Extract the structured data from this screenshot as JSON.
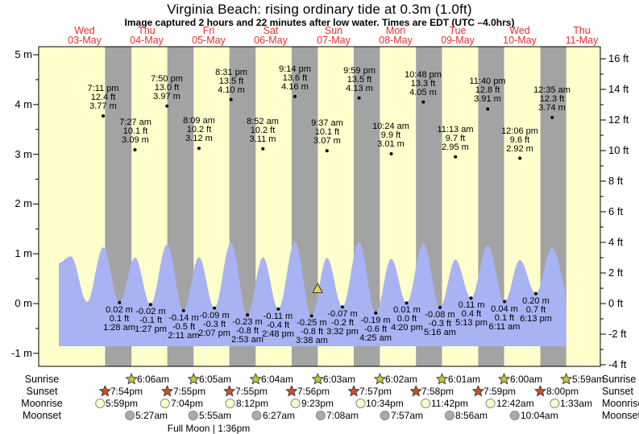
{
  "header": {
    "title": "Virginia Beach: rising  ordinary tide at 0.3m (1.0ft)",
    "subtitle": "Image captured 2 hours and 22 minutes after low water. Times are EDT (UTC –4.0hrs)"
  },
  "chart_data": {
    "type": "area",
    "title": "Virginia Beach: rising  ordinary tide at 0.3m (1.0ft)",
    "xlabel": "date",
    "ylabel_left": "m",
    "ylabel_right": "ft",
    "ylim_m": [
      -1.3,
      5.2
    ],
    "grid": false,
    "axes": {
      "left_ticks": [
        "5 m",
        "4 m",
        "3 m",
        "2 m",
        "1 m",
        "0 m",
        "-1 m"
      ],
      "right_ticks": [
        "16 ft",
        "14 ft",
        "12 ft",
        "10 ft",
        "8 ft",
        "6 ft",
        "4 ft",
        "2 ft",
        "0 ft",
        "-2 ft",
        "-4 ft"
      ]
    },
    "days": [
      {
        "name": "Wed",
        "date": "03-May"
      },
      {
        "name": "Thu",
        "date": "04-May"
      },
      {
        "name": "Fri",
        "date": "05-May"
      },
      {
        "name": "Sat",
        "date": "06-May"
      },
      {
        "name": "Sun",
        "date": "07-May"
      },
      {
        "name": "Mon",
        "date": "08-May"
      },
      {
        "name": "Tue",
        "date": "09-May"
      },
      {
        "name": "Wed",
        "date": "10-May"
      },
      {
        "name": "Thu",
        "date": "11-May"
      }
    ],
    "tides": [
      {
        "day": 0,
        "type": "high",
        "time": "7:11 pm",
        "ft": "12.4 ft",
        "m": "3.77 m"
      },
      {
        "day": 1,
        "type": "low",
        "time": "1:28 am",
        "ft": "0.1 ft",
        "m": "0.02 m"
      },
      {
        "day": 1,
        "type": "high",
        "time": "7:27 am",
        "ft": "10.1 ft",
        "m": "3.09 m"
      },
      {
        "day": 1,
        "type": "low",
        "time": "1:27 pm",
        "ft": "-0.1 ft",
        "m": "-0.02 m"
      },
      {
        "day": 1,
        "type": "high",
        "time": "7:50 pm",
        "ft": "13.0 ft",
        "m": "3.97 m"
      },
      {
        "day": 2,
        "type": "low",
        "time": "2:11 am",
        "ft": "-0.5 ft",
        "m": "-0.14 m"
      },
      {
        "day": 2,
        "type": "high",
        "time": "8:09 am",
        "ft": "10.2 ft",
        "m": "3.12 m"
      },
      {
        "day": 2,
        "type": "low",
        "time": "2:07 pm",
        "ft": "-0.3 ft",
        "m": "-0.09 m"
      },
      {
        "day": 2,
        "type": "high",
        "time": "8:31 pm",
        "ft": "13.5 ft",
        "m": "4.10 m"
      },
      {
        "day": 3,
        "type": "low",
        "time": "2:53 am",
        "ft": "-0.8 ft",
        "m": "-0.23 m"
      },
      {
        "day": 3,
        "type": "high",
        "time": "8:52 am",
        "ft": "10.2 ft",
        "m": "3.11 m"
      },
      {
        "day": 3,
        "type": "low",
        "time": "2:48 pm",
        "ft": "-0.4 ft",
        "m": "-0.11 m"
      },
      {
        "day": 3,
        "type": "high",
        "time": "9:14 pm",
        "ft": "13.6 ft",
        "m": "4.16 m"
      },
      {
        "day": 4,
        "type": "low",
        "time": "3:38 am",
        "ft": "-0.8 ft",
        "m": "-0.25 m"
      },
      {
        "day": 4,
        "type": "high",
        "time": "9:37 am",
        "ft": "10.1 ft",
        "m": "3.07 m"
      },
      {
        "day": 4,
        "type": "low",
        "time": "3:32 pm",
        "ft": "-0.2 ft",
        "m": "-0.07 m"
      },
      {
        "day": 4,
        "type": "high",
        "time": "9:59 pm",
        "ft": "13.5 ft",
        "m": "4.13 m"
      },
      {
        "day": 5,
        "type": "low",
        "time": "4:25 am",
        "ft": "-0.6 ft",
        "m": "-0.19 m"
      },
      {
        "day": 5,
        "type": "high",
        "time": "10:24 am",
        "ft": "9.9 ft",
        "m": "3.01 m"
      },
      {
        "day": 5,
        "type": "low",
        "time": "4:20 pm",
        "ft": "0.0 ft",
        "m": "0.01 m"
      },
      {
        "day": 5,
        "type": "high",
        "time": "10:48 pm",
        "ft": "13.3 ft",
        "m": "4.05 m"
      },
      {
        "day": 6,
        "type": "low",
        "time": "5:16 am",
        "ft": "-0.3 ft",
        "m": "-0.08 m"
      },
      {
        "day": 6,
        "type": "high",
        "time": "11:13 am",
        "ft": "9.7 ft",
        "m": "2.95 m"
      },
      {
        "day": 6,
        "type": "low",
        "time": "5:13 pm",
        "ft": "0.4 ft",
        "m": "0.11 m"
      },
      {
        "day": 6,
        "type": "high",
        "time": "11:40 pm",
        "ft": "12.8 ft",
        "m": "3.91 m"
      },
      {
        "day": 7,
        "type": "low",
        "time": "6:11 am",
        "ft": "0.1 ft",
        "m": "0.04 m"
      },
      {
        "day": 7,
        "type": "high",
        "time": "12:06 pm",
        "ft": "9.6 ft",
        "m": "2.92 m"
      },
      {
        "day": 7,
        "type": "low",
        "time": "6:13 pm",
        "ft": "0.7 ft",
        "m": "0.20 m"
      },
      {
        "day": 8,
        "type": "high",
        "time": "12:35 am",
        "ft": "12.3 ft",
        "m": "3.74 m"
      }
    ],
    "marker": {
      "day": 4,
      "time": "6:00am",
      "level_m": 0.3
    },
    "astro": {
      "rows": [
        {
          "key": "sunrise",
          "label": "Sunrise",
          "icon": "sunrise-star",
          "items": [
            {
              "day": 1,
              "time": "6:06am"
            },
            {
              "day": 2,
              "time": "6:05am"
            },
            {
              "day": 3,
              "time": "6:04am"
            },
            {
              "day": 4,
              "time": "6:03am"
            },
            {
              "day": 5,
              "time": "6:02am"
            },
            {
              "day": 6,
              "time": "6:01am"
            },
            {
              "day": 7,
              "time": "6:00am"
            },
            {
              "day": 8,
              "time": "5:59am"
            }
          ]
        },
        {
          "key": "sunset",
          "label": "Sunset",
          "icon": "sunset-star",
          "items": [
            {
              "day": 0,
              "time": "7:54pm"
            },
            {
              "day": 1,
              "time": "7:55pm"
            },
            {
              "day": 2,
              "time": "7:55pm"
            },
            {
              "day": 3,
              "time": "7:56pm"
            },
            {
              "day": 4,
              "time": "7:57pm"
            },
            {
              "day": 5,
              "time": "7:58pm"
            },
            {
              "day": 6,
              "time": "7:59pm"
            },
            {
              "day": 7,
              "time": "8:00pm"
            }
          ]
        },
        {
          "key": "moonrise",
          "label": "Moonrise",
          "icon": "moonrise-circle",
          "items": [
            {
              "day": 0,
              "time": "5:59pm"
            },
            {
              "day": 1,
              "time": "7:04pm"
            },
            {
              "day": 2,
              "time": "8:12pm"
            },
            {
              "day": 3,
              "time": "9:23pm"
            },
            {
              "day": 4,
              "time": "10:34pm"
            },
            {
              "day": 5,
              "time": "11:42pm"
            },
            {
              "day": 7,
              "time": "12:42am"
            },
            {
              "day": 8,
              "time": "1:33am"
            }
          ]
        },
        {
          "key": "moonset",
          "label": "Moonset",
          "icon": "moonset-circle",
          "items": [
            {
              "day": 1,
              "time": "5:27am"
            },
            {
              "day": 2,
              "time": "5:55am"
            },
            {
              "day": 3,
              "time": "6:27am"
            },
            {
              "day": 4,
              "time": "7:08am"
            },
            {
              "day": 5,
              "time": "7:57am"
            },
            {
              "day": 6,
              "time": "8:56am"
            },
            {
              "day": 7,
              "time": "10:04am"
            }
          ]
        }
      ],
      "full_moon": "Full Moon | 1:36pm"
    },
    "colors": {
      "day_band": "#FFFFCC",
      "night_band": "#A3A3A3",
      "wave": "#A9B2F3",
      "day_label_red": "#E93030",
      "marker_yellow": "#E8D24A",
      "sunrise_star": "#C6C832",
      "sunset_star": "#D2501E",
      "moonrise_circle": "#FFFFC8",
      "moonset_circle": "#ABABAB"
    }
  }
}
